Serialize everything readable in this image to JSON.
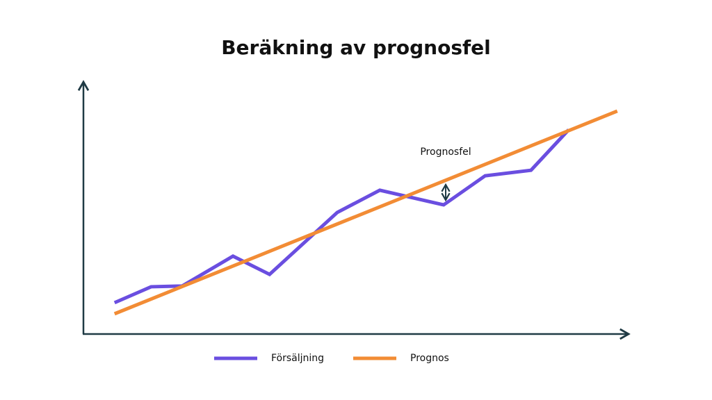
{
  "chart_data": {
    "type": "line",
    "title": "Beräkning av prognosfel",
    "annotation": "Prognosfel",
    "xlim": [
      0,
      100
    ],
    "ylim": [
      0,
      100
    ],
    "grid": false,
    "legend": "bottom",
    "series": [
      {
        "name": "Försäljning",
        "color": "#6a4ee0",
        "x": [
          5.7,
          12.4,
          18.1,
          27.4,
          34.1,
          46.5,
          54.3,
          66.0,
          73.6,
          82.0,
          88.9
        ],
        "values": [
          12.4,
          18.7,
          19.0,
          30.8,
          23.6,
          48.1,
          56.9,
          51.1,
          62.6,
          64.8,
          80.8
        ]
      },
      {
        "name": "Prognos",
        "color": "#f28c35",
        "x": [
          5.7,
          97.8
        ],
        "values": [
          8.0,
          88.2
        ]
      }
    ]
  }
}
